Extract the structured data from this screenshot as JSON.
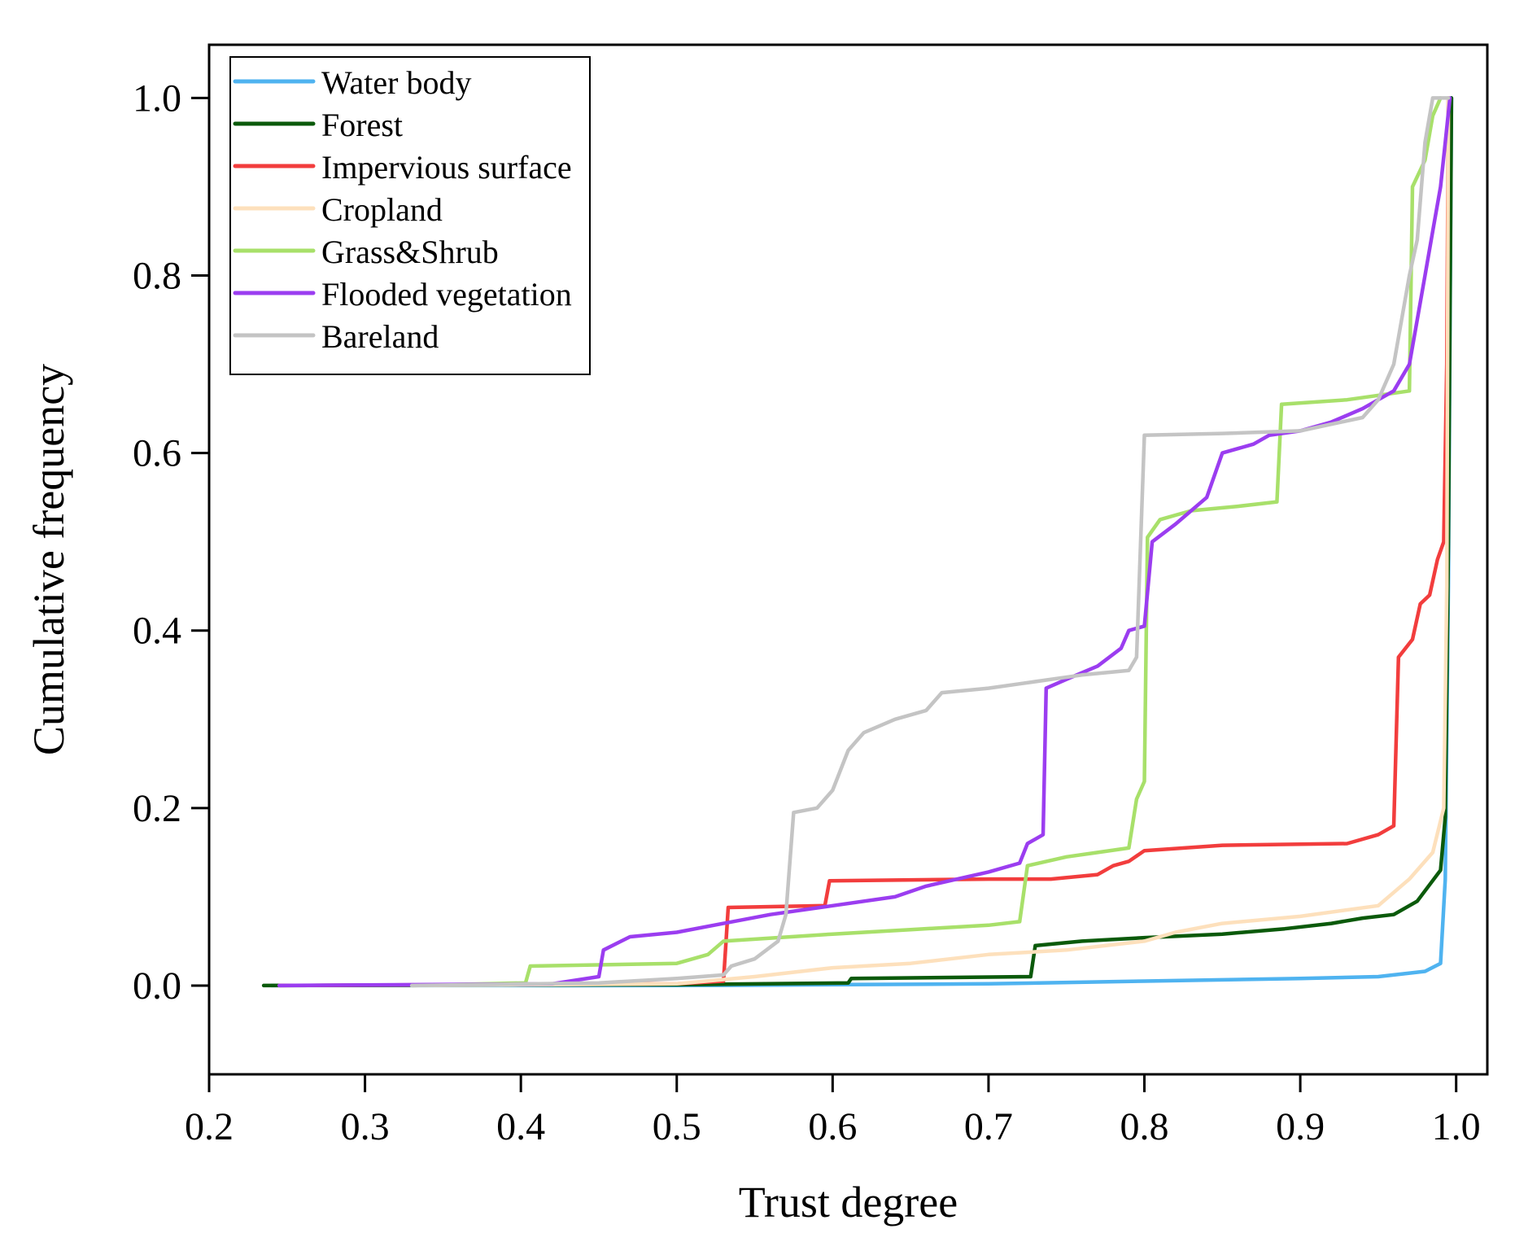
{
  "chart_data": {
    "type": "line",
    "title": "",
    "xlabel": "Trust degree",
    "ylabel": "Cumulative frequency",
    "xlim": [
      0.2,
      1.02
    ],
    "ylim": [
      -0.1,
      1.06
    ],
    "xticks": [
      "0.2",
      "0.3",
      "0.4",
      "0.5",
      "0.6",
      "0.7",
      "0.8",
      "0.9",
      "1.0"
    ],
    "xtick_values": [
      0.2,
      0.3,
      0.4,
      0.5,
      0.6,
      0.7,
      0.8,
      0.9,
      1.0
    ],
    "yticks": [
      "0.0",
      "0.2",
      "0.4",
      "0.6",
      "0.8",
      "1.0"
    ],
    "ytick_values": [
      0.0,
      0.2,
      0.4,
      0.6,
      0.8,
      1.0
    ],
    "grid": false,
    "legend_position": "top-left",
    "series": [
      {
        "name": "Water body",
        "color": "#4fb3f0",
        "points": [
          [
            0.24,
            0.0
          ],
          [
            0.5,
            0.0
          ],
          [
            0.7,
            0.002
          ],
          [
            0.8,
            0.005
          ],
          [
            0.9,
            0.008
          ],
          [
            0.95,
            0.01
          ],
          [
            0.98,
            0.016
          ],
          [
            0.99,
            0.025
          ],
          [
            0.993,
            0.12
          ],
          [
            0.995,
            0.45
          ],
          [
            0.997,
            1.0
          ]
        ]
      },
      {
        "name": "Forest",
        "color": "#0b5a0b",
        "points": [
          [
            0.235,
            0.0
          ],
          [
            0.5,
            0.001
          ],
          [
            0.61,
            0.003
          ],
          [
            0.612,
            0.008
          ],
          [
            0.727,
            0.01
          ],
          [
            0.73,
            0.045
          ],
          [
            0.76,
            0.05
          ],
          [
            0.8,
            0.054
          ],
          [
            0.85,
            0.058
          ],
          [
            0.89,
            0.064
          ],
          [
            0.92,
            0.07
          ],
          [
            0.94,
            0.076
          ],
          [
            0.96,
            0.08
          ],
          [
            0.975,
            0.095
          ],
          [
            0.99,
            0.13
          ],
          [
            0.993,
            0.19
          ],
          [
            0.995,
            0.5
          ],
          [
            0.997,
            1.0
          ]
        ]
      },
      {
        "name": "Impervious surface",
        "color": "#f23d3d",
        "points": [
          [
            0.245,
            0.0
          ],
          [
            0.5,
            0.002
          ],
          [
            0.53,
            0.005
          ],
          [
            0.533,
            0.088
          ],
          [
            0.595,
            0.09
          ],
          [
            0.598,
            0.118
          ],
          [
            0.7,
            0.12
          ],
          [
            0.74,
            0.12
          ],
          [
            0.77,
            0.125
          ],
          [
            0.78,
            0.135
          ],
          [
            0.79,
            0.14
          ],
          [
            0.8,
            0.152
          ],
          [
            0.85,
            0.158
          ],
          [
            0.93,
            0.16
          ],
          [
            0.95,
            0.17
          ],
          [
            0.96,
            0.18
          ],
          [
            0.963,
            0.37
          ],
          [
            0.972,
            0.39
          ],
          [
            0.977,
            0.43
          ],
          [
            0.983,
            0.44
          ],
          [
            0.988,
            0.48
          ],
          [
            0.992,
            0.5
          ],
          [
            0.994,
            0.7
          ],
          [
            0.995,
            1.0
          ]
        ]
      },
      {
        "name": "Cropland",
        "color": "#fde0bc",
        "points": [
          [
            0.33,
            0.0
          ],
          [
            0.5,
            0.002
          ],
          [
            0.55,
            0.01
          ],
          [
            0.6,
            0.02
          ],
          [
            0.65,
            0.025
          ],
          [
            0.7,
            0.035
          ],
          [
            0.75,
            0.04
          ],
          [
            0.8,
            0.05
          ],
          [
            0.82,
            0.06
          ],
          [
            0.85,
            0.07
          ],
          [
            0.9,
            0.078
          ],
          [
            0.95,
            0.09
          ],
          [
            0.97,
            0.12
          ],
          [
            0.985,
            0.15
          ],
          [
            0.992,
            0.2
          ],
          [
            0.994,
            0.45
          ],
          [
            0.995,
            1.0
          ]
        ]
      },
      {
        "name": "Grass&Shrub",
        "color": "#a8e06a",
        "points": [
          [
            0.33,
            0.0
          ],
          [
            0.403,
            0.003
          ],
          [
            0.406,
            0.022
          ],
          [
            0.5,
            0.025
          ],
          [
            0.52,
            0.035
          ],
          [
            0.53,
            0.05
          ],
          [
            0.6,
            0.058
          ],
          [
            0.65,
            0.063
          ],
          [
            0.7,
            0.068
          ],
          [
            0.72,
            0.072
          ],
          [
            0.725,
            0.135
          ],
          [
            0.75,
            0.145
          ],
          [
            0.77,
            0.15
          ],
          [
            0.79,
            0.155
          ],
          [
            0.795,
            0.21
          ],
          [
            0.8,
            0.23
          ],
          [
            0.802,
            0.505
          ],
          [
            0.81,
            0.525
          ],
          [
            0.83,
            0.535
          ],
          [
            0.86,
            0.54
          ],
          [
            0.885,
            0.545
          ],
          [
            0.888,
            0.655
          ],
          [
            0.93,
            0.66
          ],
          [
            0.95,
            0.665
          ],
          [
            0.97,
            0.67
          ],
          [
            0.972,
            0.9
          ],
          [
            0.98,
            0.93
          ],
          [
            0.985,
            0.98
          ],
          [
            0.99,
            1.0
          ]
        ]
      },
      {
        "name": "Flooded vegetation",
        "color": "#9b3df0",
        "points": [
          [
            0.245,
            0.0
          ],
          [
            0.42,
            0.002
          ],
          [
            0.45,
            0.01
          ],
          [
            0.453,
            0.04
          ],
          [
            0.47,
            0.055
          ],
          [
            0.5,
            0.06
          ],
          [
            0.53,
            0.07
          ],
          [
            0.56,
            0.08
          ],
          [
            0.6,
            0.09
          ],
          [
            0.64,
            0.1
          ],
          [
            0.66,
            0.112
          ],
          [
            0.68,
            0.12
          ],
          [
            0.7,
            0.128
          ],
          [
            0.72,
            0.138
          ],
          [
            0.725,
            0.16
          ],
          [
            0.735,
            0.17
          ],
          [
            0.737,
            0.335
          ],
          [
            0.75,
            0.345
          ],
          [
            0.77,
            0.36
          ],
          [
            0.785,
            0.38
          ],
          [
            0.79,
            0.4
          ],
          [
            0.8,
            0.405
          ],
          [
            0.805,
            0.5
          ],
          [
            0.82,
            0.52
          ],
          [
            0.84,
            0.55
          ],
          [
            0.85,
            0.6
          ],
          [
            0.87,
            0.61
          ],
          [
            0.88,
            0.62
          ],
          [
            0.9,
            0.625
          ],
          [
            0.92,
            0.635
          ],
          [
            0.94,
            0.65
          ],
          [
            0.96,
            0.67
          ],
          [
            0.97,
            0.7
          ],
          [
            0.975,
            0.75
          ],
          [
            0.98,
            0.8
          ],
          [
            0.985,
            0.85
          ],
          [
            0.99,
            0.9
          ],
          [
            0.993,
            0.95
          ],
          [
            0.996,
            1.0
          ]
        ]
      },
      {
        "name": "Bareland",
        "color": "#c4c4c4",
        "points": [
          [
            0.33,
            0.0
          ],
          [
            0.45,
            0.003
          ],
          [
            0.5,
            0.008
          ],
          [
            0.53,
            0.012
          ],
          [
            0.535,
            0.022
          ],
          [
            0.55,
            0.03
          ],
          [
            0.565,
            0.05
          ],
          [
            0.57,
            0.08
          ],
          [
            0.575,
            0.195
          ],
          [
            0.59,
            0.2
          ],
          [
            0.6,
            0.22
          ],
          [
            0.61,
            0.265
          ],
          [
            0.62,
            0.285
          ],
          [
            0.64,
            0.3
          ],
          [
            0.66,
            0.31
          ],
          [
            0.67,
            0.33
          ],
          [
            0.7,
            0.335
          ],
          [
            0.72,
            0.34
          ],
          [
            0.76,
            0.35
          ],
          [
            0.79,
            0.355
          ],
          [
            0.795,
            0.37
          ],
          [
            0.8,
            0.62
          ],
          [
            0.85,
            0.622
          ],
          [
            0.9,
            0.625
          ],
          [
            0.94,
            0.64
          ],
          [
            0.95,
            0.66
          ],
          [
            0.96,
            0.7
          ],
          [
            0.97,
            0.8
          ],
          [
            0.975,
            0.84
          ],
          [
            0.98,
            0.95
          ],
          [
            0.985,
            1.0
          ],
          [
            0.995,
            1.0
          ]
        ]
      }
    ]
  }
}
